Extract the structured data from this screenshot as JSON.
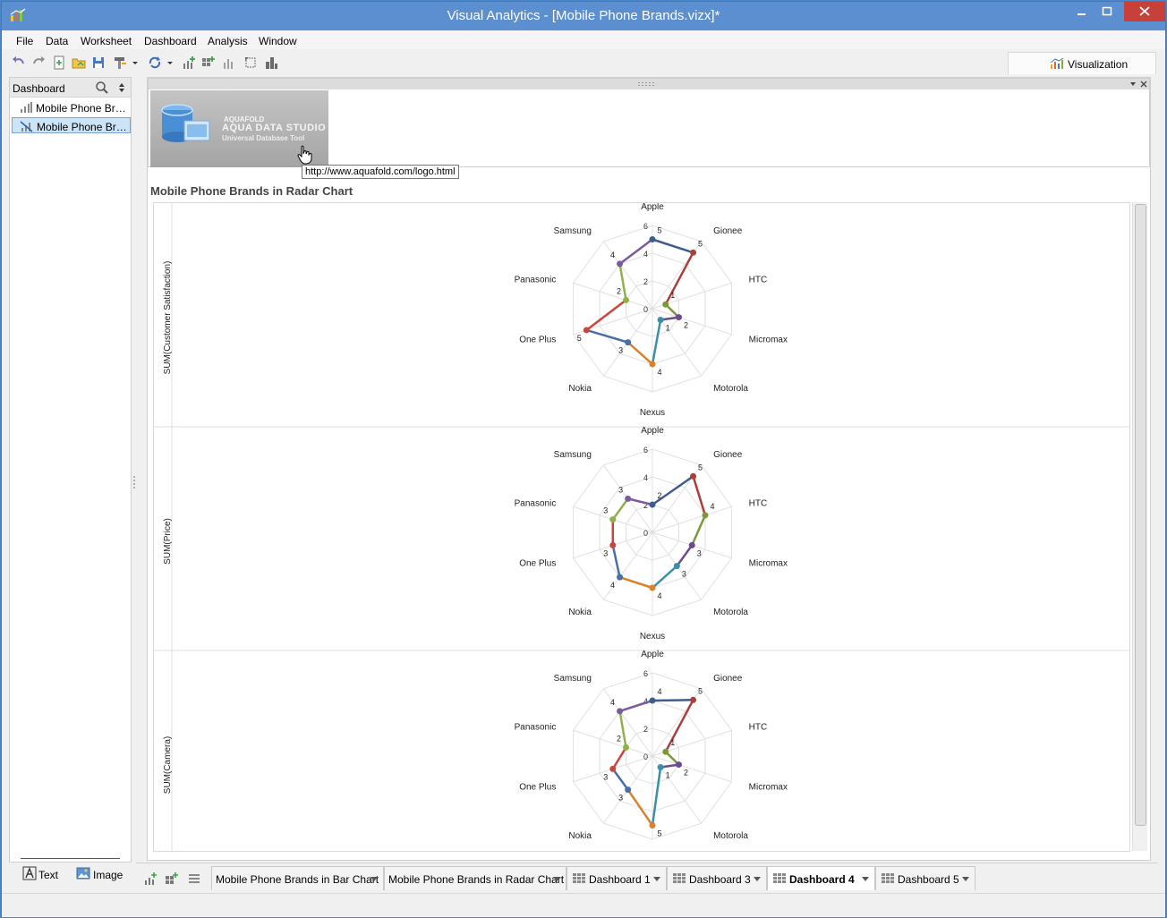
{
  "window": {
    "title": "Visual Analytics - [Mobile Phone Brands.vizx]*"
  },
  "menu": [
    "File",
    "Data",
    "Worksheet",
    "Dashboard",
    "Analysis",
    "Window"
  ],
  "toolbar": {
    "icons": [
      "undo-icon",
      "redo-icon",
      "new-icon",
      "open-icon",
      "save-icon",
      "brush-icon",
      "refresh-icon",
      "add-chart-icon",
      "add-grid-icon",
      "bar-chart-icon",
      "rotate-icon",
      "stack-icon"
    ]
  },
  "visualization_tab": {
    "label": "Visualization"
  },
  "left_panel": {
    "header": "Dashboard",
    "items": [
      {
        "label": "Mobile Phone Brands in Bar Chart",
        "selected": false
      },
      {
        "label": "Mobile Phone Brands in Radar Chart",
        "selected": true
      }
    ],
    "text_button": "Text",
    "image_button": "Image"
  },
  "image_panel": {
    "logo_line1": "AQUAFOLD",
    "logo_line2": "AQUA DATA STUDIO",
    "logo_line3": "Universal Database Tool",
    "tooltip": "http://www.aquafold.com/logo.html"
  },
  "dashboard": {
    "title": "Mobile Phone Brands in Radar Chart"
  },
  "chart_data": {
    "type": "radar",
    "categories": [
      "Apple",
      "Gionee",
      "HTC",
      "Micromax",
      "Motorola",
      "Nexus",
      "Nokia",
      "One Plus",
      "Panasonic",
      "Samsung"
    ],
    "axis_range": [
      0,
      6
    ],
    "rings": [
      0,
      2,
      4,
      6
    ],
    "segment_colors": [
      "#3e5d8f",
      "#ab3e3b",
      "#7a9a3a",
      "#6b4c8c",
      "#3a90a8",
      "#d9822b",
      "#4a6fa8",
      "#c9463d",
      "#8fb14a",
      "#7c5b9c"
    ],
    "panels": [
      {
        "ylabel": "SUM(Customer Satisfaction)",
        "values": [
          5,
          5,
          1,
          2,
          1,
          4,
          3,
          5,
          2,
          4
        ]
      },
      {
        "ylabel": "SUM(Price)",
        "values": [
          2,
          5,
          4,
          3,
          3,
          4,
          4,
          3,
          3,
          3
        ]
      },
      {
        "ylabel": "SUM(Camera)",
        "values": [
          4,
          5,
          1,
          2,
          1,
          5,
          3,
          3,
          2,
          4
        ]
      }
    ]
  },
  "sheet_tabs": [
    {
      "label": "Mobile Phone Brands  in Bar Chart",
      "kind": "chart",
      "active": false
    },
    {
      "label": "Mobile Phone Brands in Radar Chart",
      "kind": "chart",
      "active": false
    },
    {
      "label": "Dashboard 1",
      "kind": "dashboard",
      "active": false
    },
    {
      "label": "Dashboard 3",
      "kind": "dashboard",
      "active": false
    },
    {
      "label": "Dashboard 4",
      "kind": "dashboard",
      "active": true
    },
    {
      "label": "Dashboard 5",
      "kind": "dashboard",
      "active": false
    }
  ]
}
